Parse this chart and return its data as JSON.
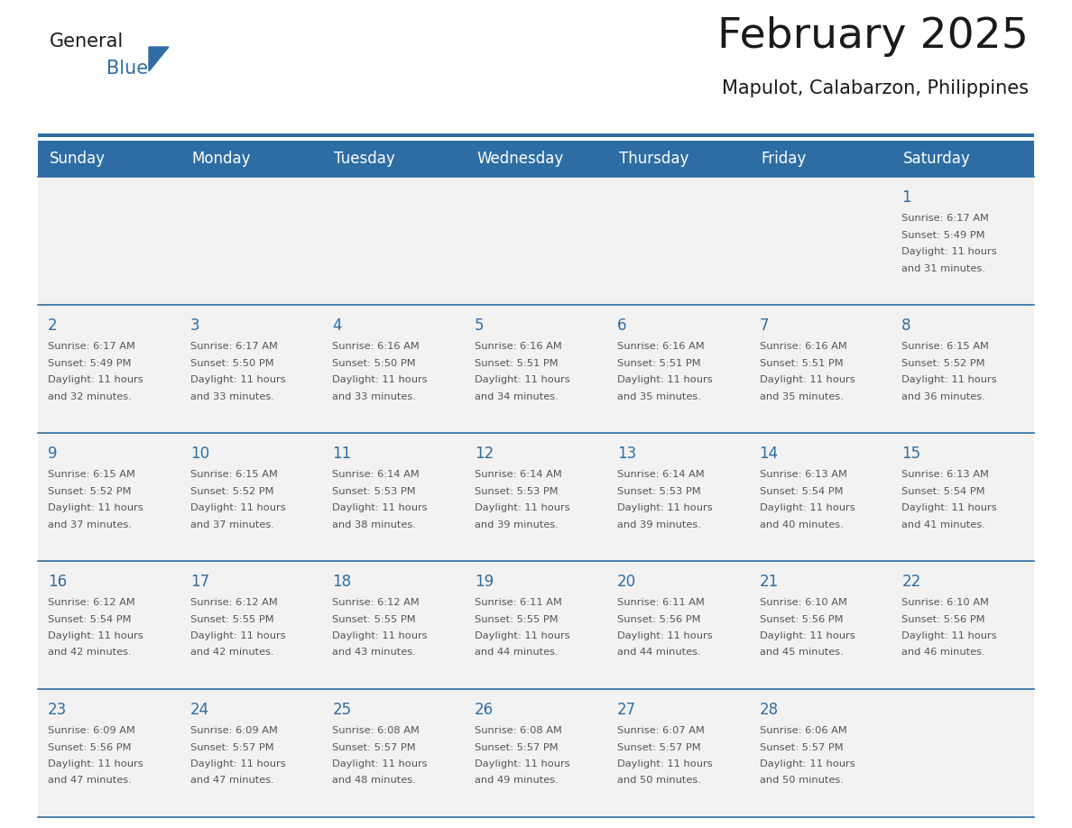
{
  "title": "February 2025",
  "subtitle": "Mapulot, Calabarzon, Philippines",
  "header_bg": "#2E6DA4",
  "header_text_color": "#FFFFFF",
  "cell_bg": "#F2F2F2",
  "text_color": "#555555",
  "day_number_color": "#2E6DA4",
  "border_color": "#2E6DA4",
  "days_of_week": [
    "Sunday",
    "Monday",
    "Tuesday",
    "Wednesday",
    "Thursday",
    "Friday",
    "Saturday"
  ],
  "logo_text1": "General",
  "logo_text2": "Blue",
  "logo_text1_color": "#1a1a1a",
  "logo_text2_color": "#2E6DA4",
  "logo_triangle_color": "#2E6DA4",
  "weeks": [
    [
      {
        "day": null,
        "sunrise": null,
        "sunset": null,
        "daylight_hours": null,
        "daylight_mins": null
      },
      {
        "day": null,
        "sunrise": null,
        "sunset": null,
        "daylight_hours": null,
        "daylight_mins": null
      },
      {
        "day": null,
        "sunrise": null,
        "sunset": null,
        "daylight_hours": null,
        "daylight_mins": null
      },
      {
        "day": null,
        "sunrise": null,
        "sunset": null,
        "daylight_hours": null,
        "daylight_mins": null
      },
      {
        "day": null,
        "sunrise": null,
        "sunset": null,
        "daylight_hours": null,
        "daylight_mins": null
      },
      {
        "day": null,
        "sunrise": null,
        "sunset": null,
        "daylight_hours": null,
        "daylight_mins": null
      },
      {
        "day": 1,
        "sunrise": "6:17 AM",
        "sunset": "5:49 PM",
        "daylight_hours": 11,
        "daylight_mins": 31
      }
    ],
    [
      {
        "day": 2,
        "sunrise": "6:17 AM",
        "sunset": "5:49 PM",
        "daylight_hours": 11,
        "daylight_mins": 32
      },
      {
        "day": 3,
        "sunrise": "6:17 AM",
        "sunset": "5:50 PM",
        "daylight_hours": 11,
        "daylight_mins": 33
      },
      {
        "day": 4,
        "sunrise": "6:16 AM",
        "sunset": "5:50 PM",
        "daylight_hours": 11,
        "daylight_mins": 33
      },
      {
        "day": 5,
        "sunrise": "6:16 AM",
        "sunset": "5:51 PM",
        "daylight_hours": 11,
        "daylight_mins": 34
      },
      {
        "day": 6,
        "sunrise": "6:16 AM",
        "sunset": "5:51 PM",
        "daylight_hours": 11,
        "daylight_mins": 35
      },
      {
        "day": 7,
        "sunrise": "6:16 AM",
        "sunset": "5:51 PM",
        "daylight_hours": 11,
        "daylight_mins": 35
      },
      {
        "day": 8,
        "sunrise": "6:15 AM",
        "sunset": "5:52 PM",
        "daylight_hours": 11,
        "daylight_mins": 36
      }
    ],
    [
      {
        "day": 9,
        "sunrise": "6:15 AM",
        "sunset": "5:52 PM",
        "daylight_hours": 11,
        "daylight_mins": 37
      },
      {
        "day": 10,
        "sunrise": "6:15 AM",
        "sunset": "5:52 PM",
        "daylight_hours": 11,
        "daylight_mins": 37
      },
      {
        "day": 11,
        "sunrise": "6:14 AM",
        "sunset": "5:53 PM",
        "daylight_hours": 11,
        "daylight_mins": 38
      },
      {
        "day": 12,
        "sunrise": "6:14 AM",
        "sunset": "5:53 PM",
        "daylight_hours": 11,
        "daylight_mins": 39
      },
      {
        "day": 13,
        "sunrise": "6:14 AM",
        "sunset": "5:53 PM",
        "daylight_hours": 11,
        "daylight_mins": 39
      },
      {
        "day": 14,
        "sunrise": "6:13 AM",
        "sunset": "5:54 PM",
        "daylight_hours": 11,
        "daylight_mins": 40
      },
      {
        "day": 15,
        "sunrise": "6:13 AM",
        "sunset": "5:54 PM",
        "daylight_hours": 11,
        "daylight_mins": 41
      }
    ],
    [
      {
        "day": 16,
        "sunrise": "6:12 AM",
        "sunset": "5:54 PM",
        "daylight_hours": 11,
        "daylight_mins": 42
      },
      {
        "day": 17,
        "sunrise": "6:12 AM",
        "sunset": "5:55 PM",
        "daylight_hours": 11,
        "daylight_mins": 42
      },
      {
        "day": 18,
        "sunrise": "6:12 AM",
        "sunset": "5:55 PM",
        "daylight_hours": 11,
        "daylight_mins": 43
      },
      {
        "day": 19,
        "sunrise": "6:11 AM",
        "sunset": "5:55 PM",
        "daylight_hours": 11,
        "daylight_mins": 44
      },
      {
        "day": 20,
        "sunrise": "6:11 AM",
        "sunset": "5:56 PM",
        "daylight_hours": 11,
        "daylight_mins": 44
      },
      {
        "day": 21,
        "sunrise": "6:10 AM",
        "sunset": "5:56 PM",
        "daylight_hours": 11,
        "daylight_mins": 45
      },
      {
        "day": 22,
        "sunrise": "6:10 AM",
        "sunset": "5:56 PM",
        "daylight_hours": 11,
        "daylight_mins": 46
      }
    ],
    [
      {
        "day": 23,
        "sunrise": "6:09 AM",
        "sunset": "5:56 PM",
        "daylight_hours": 11,
        "daylight_mins": 47
      },
      {
        "day": 24,
        "sunrise": "6:09 AM",
        "sunset": "5:57 PM",
        "daylight_hours": 11,
        "daylight_mins": 47
      },
      {
        "day": 25,
        "sunrise": "6:08 AM",
        "sunset": "5:57 PM",
        "daylight_hours": 11,
        "daylight_mins": 48
      },
      {
        "day": 26,
        "sunrise": "6:08 AM",
        "sunset": "5:57 PM",
        "daylight_hours": 11,
        "daylight_mins": 49
      },
      {
        "day": 27,
        "sunrise": "6:07 AM",
        "sunset": "5:57 PM",
        "daylight_hours": 11,
        "daylight_mins": 50
      },
      {
        "day": 28,
        "sunrise": "6:06 AM",
        "sunset": "5:57 PM",
        "daylight_hours": 11,
        "daylight_mins": 50
      },
      {
        "day": null,
        "sunrise": null,
        "sunset": null,
        "daylight_hours": null,
        "daylight_mins": null
      }
    ]
  ]
}
